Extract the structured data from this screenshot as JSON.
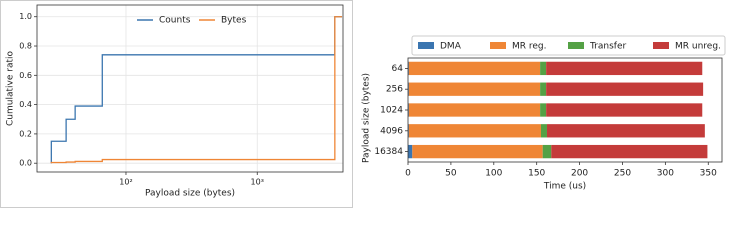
{
  "chart_data": [
    {
      "type": "step",
      "xlabel": "Payload size (bytes)",
      "ylabel": "Cumulative ratio",
      "xscale": "log",
      "x": [
        27,
        35,
        41,
        66,
        3900
      ],
      "series": [
        {
          "name": "Counts",
          "color": "#3b76af",
          "values": [
            0.15,
            0.3,
            0.39,
            0.74,
            1.0
          ]
        },
        {
          "name": "Bytes",
          "color": "#ef8636",
          "values": [
            0.005,
            0.008,
            0.012,
            0.025,
            1.0
          ]
        }
      ],
      "xlim": [
        21,
        4500
      ],
      "xticks": [
        {
          "value": 100,
          "label": "10²"
        },
        {
          "value": 1000,
          "label": "10³"
        }
      ],
      "ylim": [
        -0.06,
        1.08
      ],
      "yticks": [
        {
          "value": 0,
          "label": "0.0"
        },
        0.2,
        0.4,
        0.6,
        0.8,
        {
          "value": 1,
          "label": "1.0"
        }
      ],
      "grid": true,
      "legend": "top"
    },
    {
      "type": "stacked-barh",
      "xlabel": "Time (us)",
      "ylabel": "Payload size (bytes)",
      "categories": [
        "64",
        "256",
        "1024",
        "4096",
        "16384"
      ],
      "series": [
        {
          "name": "DMA",
          "color": "#3a75b0",
          "values": [
            1,
            1,
            1,
            1,
            5
          ]
        },
        {
          "name": "MR reg.",
          "color": "#ef8636",
          "values": [
            153,
            153,
            153,
            154,
            152
          ]
        },
        {
          "name": "Transfer",
          "color": "#54a145",
          "values": [
            7,
            7,
            7,
            7,
            10
          ]
        },
        {
          "name": "MR unreg.",
          "color": "#c43b3a",
          "values": [
            182,
            183,
            182,
            184,
            182
          ]
        }
      ],
      "xlim": [
        0,
        366
      ],
      "xticks": [
        0,
        50,
        100,
        150,
        200,
        250,
        300,
        350
      ],
      "legend": "top"
    }
  ]
}
